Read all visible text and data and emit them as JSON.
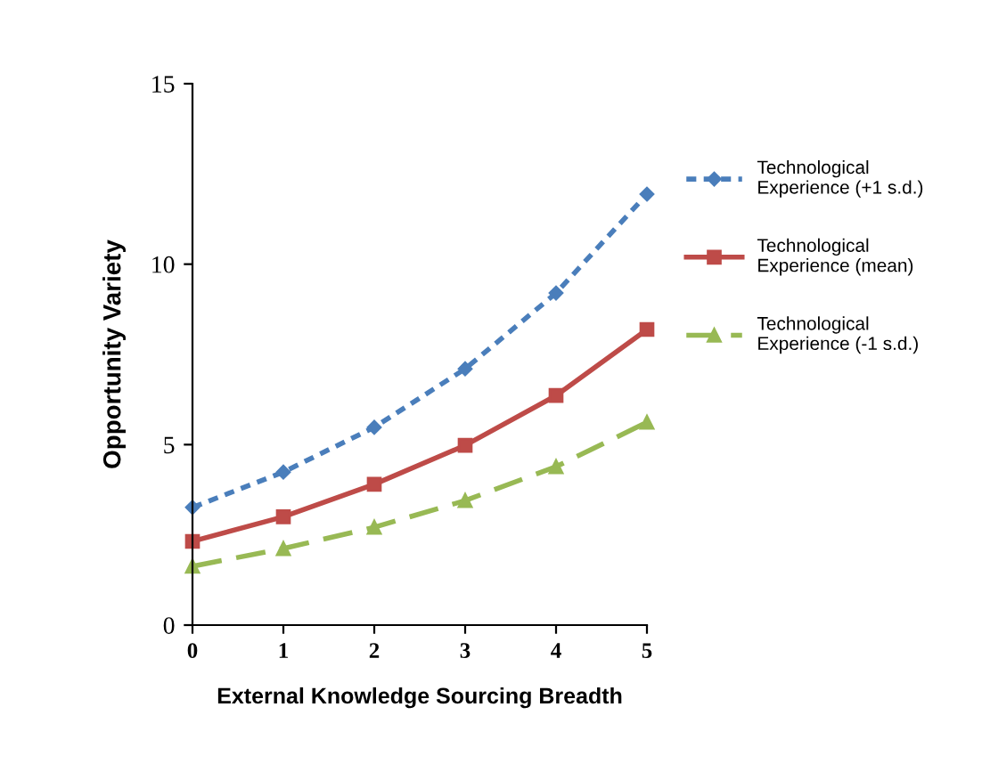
{
  "chart_data": {
    "type": "line",
    "xlabel": "External Knowledge Sourcing Breadth",
    "ylabel": "Opportunity Variety",
    "x": [
      0,
      1,
      2,
      3,
      4,
      5
    ],
    "series": [
      {
        "name": "Technological\nExperience (+1 s.d.)",
        "color": "#4a7ebb",
        "values": [
          3.26,
          4.24,
          5.48,
          7.1,
          9.2,
          11.94
        ],
        "marker": "diamond",
        "line_style": "dotted"
      },
      {
        "name": "Technological\nExperience (mean)",
        "color": "#be4b48",
        "values": [
          2.32,
          3.0,
          3.9,
          4.98,
          6.36,
          8.19
        ],
        "marker": "square",
        "line_style": "solid"
      },
      {
        "name": "Technological\nExperience (-1 s.d.)",
        "color": "#98b954",
        "values": [
          1.63,
          2.12,
          2.71,
          3.45,
          4.39,
          5.62
        ],
        "marker": "triangle",
        "line_style": "dashed"
      }
    ],
    "xlim": [
      0,
      5
    ],
    "xticks": [
      0,
      1,
      2,
      3,
      4,
      5
    ],
    "ylim": [
      0,
      15
    ],
    "yticks": [
      0,
      5,
      10,
      15
    ],
    "grid": false,
    "legend": "right"
  }
}
